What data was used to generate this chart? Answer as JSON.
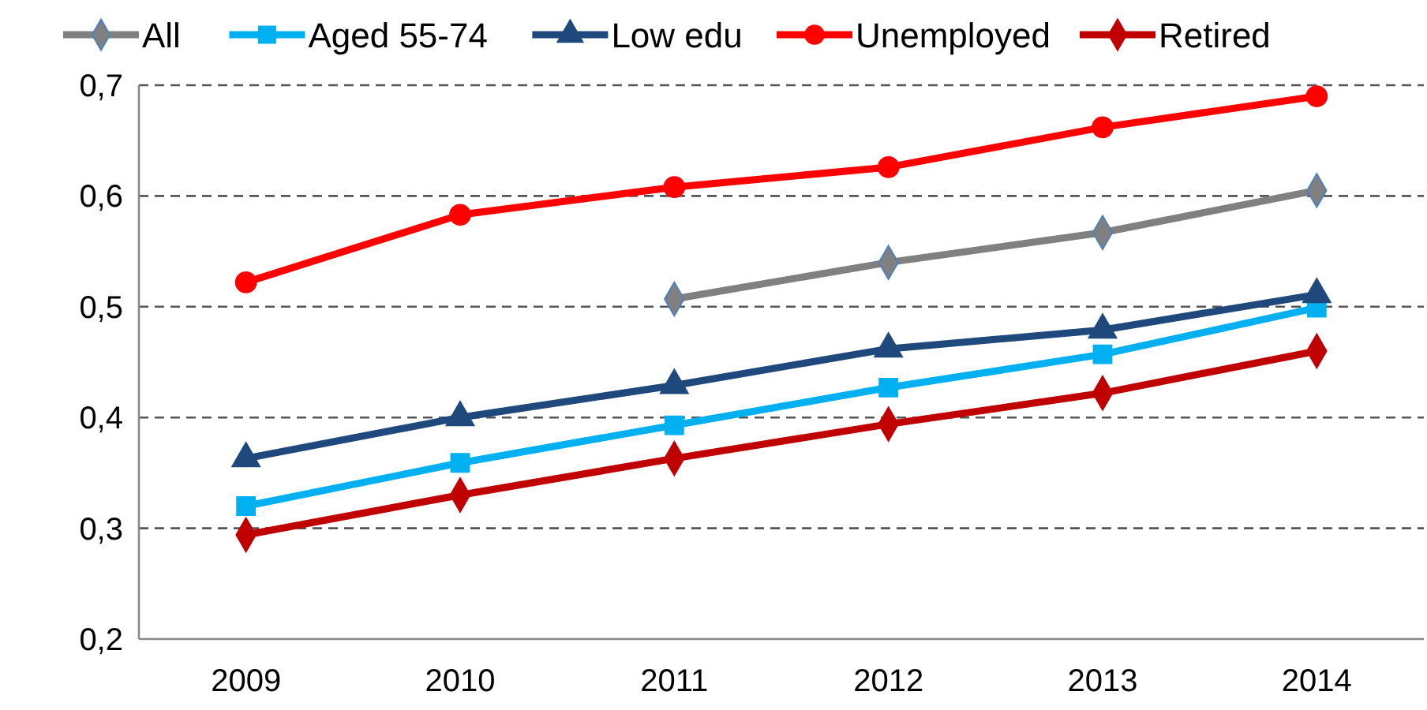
{
  "chart_data": {
    "type": "line",
    "categories": [
      "2009",
      "2010",
      "2011",
      "2012",
      "2013",
      "2014"
    ],
    "series": [
      {
        "name": "All",
        "color": "#808080",
        "marker": "diamond",
        "values": [
          null,
          null,
          0.507,
          0.54,
          0.567,
          0.605
        ]
      },
      {
        "name": "Aged 55-74",
        "color": "#00b0f0",
        "marker": "square",
        "values": [
          0.32,
          0.359,
          0.393,
          0.427,
          0.457,
          0.499
        ]
      },
      {
        "name": "Low edu",
        "color": "#1f497d",
        "marker": "triangle",
        "values": [
          0.363,
          0.4,
          0.429,
          0.462,
          0.479,
          0.511
        ]
      },
      {
        "name": "Unemployed",
        "color": "#ff0000",
        "marker": "circle",
        "values": [
          0.522,
          0.583,
          0.608,
          0.626,
          0.662,
          0.69
        ]
      },
      {
        "name": "Retired",
        "color": "#c00000",
        "marker": "diamond",
        "values": [
          0.294,
          0.33,
          0.363,
          0.394,
          0.422,
          0.46
        ]
      }
    ],
    "ylim": [
      0.2,
      0.7
    ],
    "yticks": [
      {
        "value": 0.2,
        "label": "0,2"
      },
      {
        "value": 0.3,
        "label": "0,3"
      },
      {
        "value": 0.4,
        "label": "0,4"
      },
      {
        "value": 0.5,
        "label": "0,5"
      },
      {
        "value": 0.6,
        "label": "0,6"
      },
      {
        "value": 0.7,
        "label": "0,7"
      }
    ],
    "grid": "y",
    "legend": "top"
  }
}
